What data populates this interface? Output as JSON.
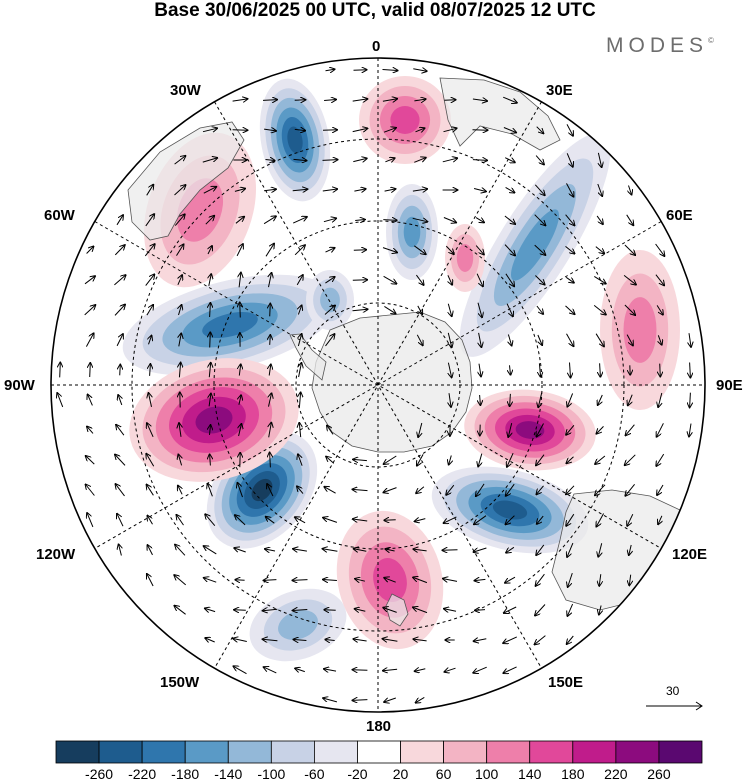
{
  "title": "Base 30/06/2025 00 UTC, valid 08/07/2025 12 UTC",
  "brand": {
    "name": "MODES",
    "mark": "©"
  },
  "longitude_labels": [
    {
      "text": "0"
    },
    {
      "text": "30E"
    },
    {
      "text": "60E"
    },
    {
      "text": "90E"
    },
    {
      "text": "120E"
    },
    {
      "text": "150E"
    },
    {
      "text": "180"
    },
    {
      "text": "150W"
    },
    {
      "text": "120W"
    },
    {
      "text": "90W"
    },
    {
      "text": "60W"
    },
    {
      "text": "30W"
    }
  ],
  "reference_vector": {
    "label": "30"
  },
  "colorbar": {
    "colors": [
      "#163d5e",
      "#1e5c8e",
      "#2f76ad",
      "#5a9ac6",
      "#93b8d8",
      "#c8d2e6",
      "#e6e6f0",
      "#ffffff",
      "#f8d8dc",
      "#f3b4c4",
      "#ee7faa",
      "#e1489a",
      "#c01c8b",
      "#8c0b7e",
      "#5a0870"
    ],
    "ticks": [
      "-260",
      "-220",
      "-180",
      "-140",
      "-100",
      "-60",
      "-20",
      "20",
      "60",
      "100",
      "140",
      "180",
      "220",
      "260"
    ]
  },
  "anomaly_centers": [
    {
      "sign": "negative",
      "value": -200
    },
    {
      "sign": "negative",
      "value": -160
    },
    {
      "sign": "negative",
      "value": -140
    },
    {
      "sign": "negative",
      "value": -270
    },
    {
      "sign": "negative",
      "value": -200
    },
    {
      "sign": "negative",
      "value": -120
    },
    {
      "sign": "negative",
      "value": -80
    },
    {
      "sign": "negative",
      "value": -100
    },
    {
      "sign": "positive",
      "value": 200
    },
    {
      "sign": "positive",
      "value": 200
    },
    {
      "sign": "positive",
      "value": 140
    },
    {
      "sign": "positive",
      "value": 120
    },
    {
      "sign": "positive",
      "value": 100
    },
    {
      "sign": "positive",
      "value": 80
    },
    {
      "sign": "positive",
      "value": 80
    }
  ],
  "colors": {
    "land": "#e9e9e9",
    "coast": "#555555",
    "frame": "#000000"
  }
}
